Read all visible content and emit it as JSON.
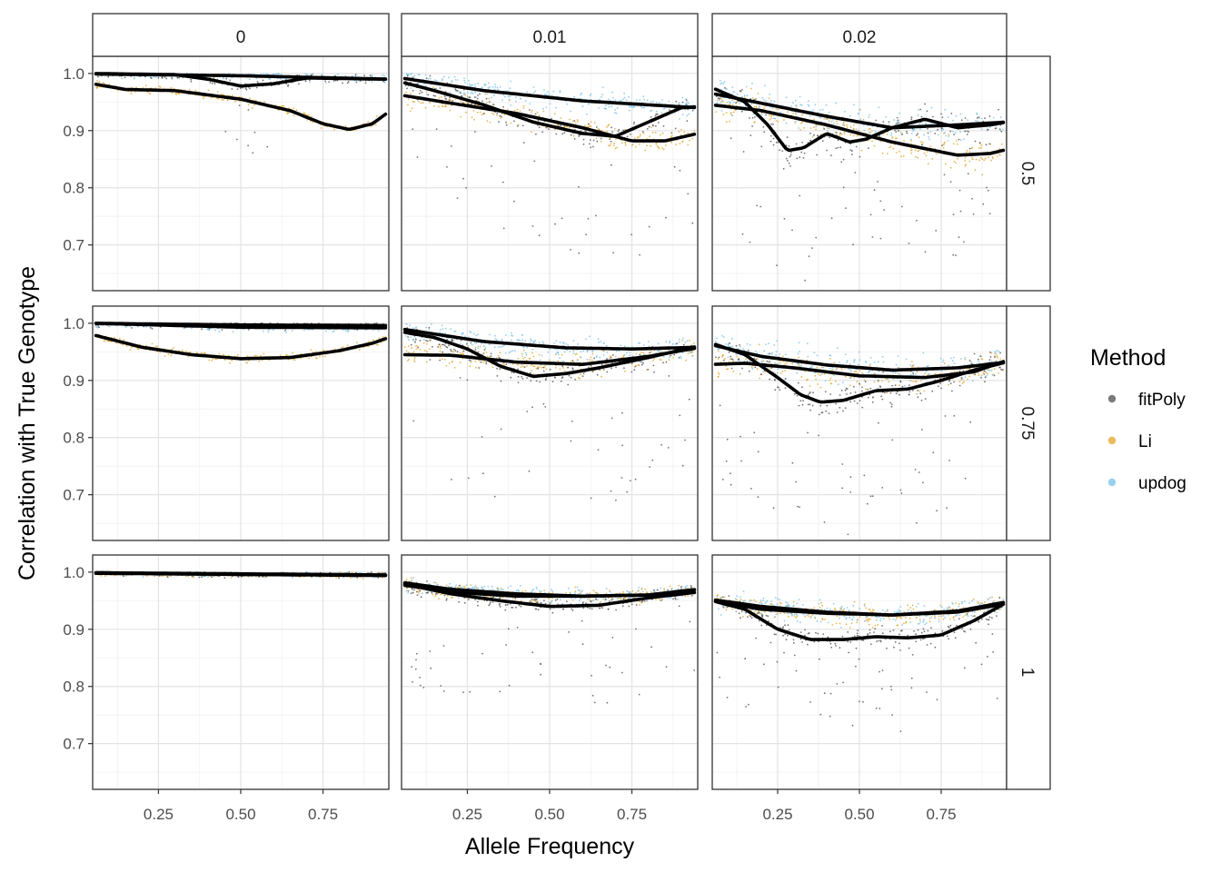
{
  "chart_data": {
    "type": "scatter",
    "xlabel": "Allele Frequency",
    "ylabel": "Correlation with True Genotype",
    "xlim": [
      0.05,
      0.95
    ],
    "ylim": [
      0.62,
      1.03
    ],
    "x_ticks": [
      0.25,
      0.5,
      0.75
    ],
    "x_tick_labels": [
      "0.25",
      "0.50",
      "0.75"
    ],
    "y_ticks": [
      0.7,
      0.8,
      0.9,
      1.0
    ],
    "y_tick_labels": [
      "0.7",
      "0.8",
      "0.9",
      "1.0"
    ],
    "grid": true,
    "column_facets": [
      "0",
      "0.01",
      "0.02"
    ],
    "row_facets": [
      "0.5",
      "0.75",
      "1"
    ],
    "legend": {
      "title": "Method",
      "position": "right",
      "entries": [
        {
          "label": "fitPoly",
          "color": "#5a5a5a"
        },
        {
          "label": "Li",
          "color": "#E6A934"
        },
        {
          "label": "updog",
          "color": "#7EC4EA"
        }
      ]
    },
    "smooth_color": "#000000",
    "panels": [
      {
        "row": "0.5",
        "col": "0",
        "smooths": {
          "fitPoly": [
            [
              0.05,
              1.0
            ],
            [
              0.3,
              0.998
            ],
            [
              0.4,
              0.99
            ],
            [
              0.5,
              0.978
            ],
            [
              0.6,
              0.982
            ],
            [
              0.7,
              0.992
            ],
            [
              0.95,
              0.99
            ]
          ],
          "Li": [
            [
              0.05,
              0.982
            ],
            [
              0.15,
              0.972
            ],
            [
              0.3,
              0.97
            ],
            [
              0.5,
              0.955
            ],
            [
              0.65,
              0.935
            ],
            [
              0.75,
              0.912
            ],
            [
              0.83,
              0.902
            ],
            [
              0.9,
              0.912
            ],
            [
              0.95,
              0.933
            ]
          ],
          "updog": [
            [
              0.05,
              0.999
            ],
            [
              0.5,
              0.996
            ],
            [
              0.95,
              0.99
            ]
          ]
        }
      },
      {
        "row": "0.5",
        "col": "0.01",
        "smooths": {
          "fitPoly": [
            [
              0.05,
              0.985
            ],
            [
              0.15,
              0.97
            ],
            [
              0.3,
              0.945
            ],
            [
              0.45,
              0.915
            ],
            [
              0.6,
              0.895
            ],
            [
              0.7,
              0.89
            ],
            [
              0.8,
              0.915
            ],
            [
              0.9,
              0.94
            ],
            [
              0.95,
              0.942
            ]
          ],
          "Li": [
            [
              0.05,
              0.962
            ],
            [
              0.2,
              0.948
            ],
            [
              0.4,
              0.93
            ],
            [
              0.6,
              0.905
            ],
            [
              0.75,
              0.882
            ],
            [
              0.85,
              0.882
            ],
            [
              0.95,
              0.895
            ]
          ],
          "updog": [
            [
              0.05,
              0.992
            ],
            [
              0.3,
              0.97
            ],
            [
              0.6,
              0.952
            ],
            [
              0.95,
              0.94
            ]
          ]
        }
      },
      {
        "row": "0.5",
        "col": "0.02",
        "smooths": {
          "fitPoly": [
            [
              0.05,
              0.975
            ],
            [
              0.15,
              0.95
            ],
            [
              0.22,
              0.91
            ],
            [
              0.28,
              0.865
            ],
            [
              0.33,
              0.87
            ],
            [
              0.4,
              0.895
            ],
            [
              0.47,
              0.88
            ],
            [
              0.52,
              0.885
            ],
            [
              0.6,
              0.905
            ],
            [
              0.7,
              0.92
            ],
            [
              0.8,
              0.905
            ],
            [
              0.9,
              0.91
            ],
            [
              0.95,
              0.915
            ]
          ],
          "Li": [
            [
              0.05,
              0.945
            ],
            [
              0.2,
              0.935
            ],
            [
              0.4,
              0.91
            ],
            [
              0.6,
              0.88
            ],
            [
              0.8,
              0.857
            ],
            [
              0.9,
              0.86
            ],
            [
              0.95,
              0.867
            ]
          ],
          "updog": [
            [
              0.05,
              0.965
            ],
            [
              0.2,
              0.948
            ],
            [
              0.4,
              0.925
            ],
            [
              0.6,
              0.905
            ],
            [
              0.8,
              0.91
            ],
            [
              0.95,
              0.915
            ]
          ]
        }
      },
      {
        "row": "0.75",
        "col": "0",
        "smooths": {
          "fitPoly": [
            [
              0.05,
              1.0
            ],
            [
              0.5,
              0.997
            ],
            [
              0.95,
              0.996
            ]
          ],
          "Li": [
            [
              0.05,
              0.98
            ],
            [
              0.2,
              0.958
            ],
            [
              0.35,
              0.945
            ],
            [
              0.5,
              0.938
            ],
            [
              0.65,
              0.94
            ],
            [
              0.8,
              0.952
            ],
            [
              0.9,
              0.965
            ],
            [
              0.95,
              0.975
            ]
          ],
          "updog": [
            [
              0.05,
              1.0
            ],
            [
              0.5,
              0.993
            ],
            [
              0.95,
              0.992
            ]
          ]
        }
      },
      {
        "row": "0.75",
        "col": "0.01",
        "smooths": {
          "fitPoly": [
            [
              0.05,
              0.985
            ],
            [
              0.15,
              0.975
            ],
            [
              0.25,
              0.955
            ],
            [
              0.35,
              0.925
            ],
            [
              0.45,
              0.907
            ],
            [
              0.55,
              0.912
            ],
            [
              0.65,
              0.922
            ],
            [
              0.8,
              0.94
            ],
            [
              0.95,
              0.96
            ]
          ],
          "Li": [
            [
              0.05,
              0.945
            ],
            [
              0.2,
              0.944
            ],
            [
              0.4,
              0.932
            ],
            [
              0.6,
              0.928
            ],
            [
              0.8,
              0.942
            ],
            [
              0.95,
              0.957
            ]
          ],
          "updog": [
            [
              0.05,
              0.99
            ],
            [
              0.3,
              0.968
            ],
            [
              0.55,
              0.957
            ],
            [
              0.75,
              0.955
            ],
            [
              0.95,
              0.958
            ]
          ]
        }
      },
      {
        "row": "0.75",
        "col": "0.02",
        "smooths": {
          "fitPoly": [
            [
              0.05,
              0.965
            ],
            [
              0.15,
              0.945
            ],
            [
              0.25,
              0.905
            ],
            [
              0.32,
              0.875
            ],
            [
              0.38,
              0.862
            ],
            [
              0.45,
              0.865
            ],
            [
              0.55,
              0.882
            ],
            [
              0.65,
              0.885
            ],
            [
              0.75,
              0.9
            ],
            [
              0.85,
              0.918
            ],
            [
              0.95,
              0.932
            ]
          ],
          "Li": [
            [
              0.05,
              0.928
            ],
            [
              0.15,
              0.93
            ],
            [
              0.3,
              0.922
            ],
            [
              0.5,
              0.908
            ],
            [
              0.7,
              0.905
            ],
            [
              0.85,
              0.915
            ],
            [
              0.95,
              0.935
            ]
          ],
          "updog": [
            [
              0.05,
              0.962
            ],
            [
              0.2,
              0.942
            ],
            [
              0.4,
              0.927
            ],
            [
              0.6,
              0.918
            ],
            [
              0.8,
              0.922
            ],
            [
              0.95,
              0.932
            ]
          ]
        }
      },
      {
        "row": "1",
        "col": "0",
        "smooths": {
          "fitPoly": [
            [
              0.05,
              0.999
            ],
            [
              0.5,
              0.996
            ],
            [
              0.95,
              0.995
            ]
          ],
          "Li": [
            [
              0.05,
              0.998
            ],
            [
              0.5,
              0.996
            ],
            [
              0.95,
              0.994
            ]
          ],
          "updog": [
            [
              0.05,
              0.999
            ],
            [
              0.5,
              0.997
            ],
            [
              0.95,
              0.995
            ]
          ]
        }
      },
      {
        "row": "1",
        "col": "0.01",
        "smooths": {
          "fitPoly": [
            [
              0.05,
              0.98
            ],
            [
              0.2,
              0.962
            ],
            [
              0.35,
              0.95
            ],
            [
              0.5,
              0.94
            ],
            [
              0.65,
              0.942
            ],
            [
              0.8,
              0.955
            ],
            [
              0.95,
              0.965
            ]
          ],
          "Li": [
            [
              0.05,
              0.978
            ],
            [
              0.2,
              0.965
            ],
            [
              0.4,
              0.958
            ],
            [
              0.6,
              0.958
            ],
            [
              0.8,
              0.96
            ],
            [
              0.95,
              0.97
            ]
          ],
          "updog": [
            [
              0.05,
              0.982
            ],
            [
              0.2,
              0.97
            ],
            [
              0.4,
              0.962
            ],
            [
              0.6,
              0.958
            ],
            [
              0.8,
              0.96
            ],
            [
              0.95,
              0.97
            ]
          ]
        }
      },
      {
        "row": "1",
        "col": "0.02",
        "smooths": {
          "fitPoly": [
            [
              0.05,
              0.95
            ],
            [
              0.15,
              0.935
            ],
            [
              0.25,
              0.9
            ],
            [
              0.35,
              0.882
            ],
            [
              0.45,
              0.882
            ],
            [
              0.55,
              0.887
            ],
            [
              0.65,
              0.885
            ],
            [
              0.75,
              0.89
            ],
            [
              0.85,
              0.915
            ],
            [
              0.95,
              0.947
            ]
          ],
          "Li": [
            [
              0.05,
              0.95
            ],
            [
              0.2,
              0.935
            ],
            [
              0.4,
              0.928
            ],
            [
              0.6,
              0.925
            ],
            [
              0.8,
              0.93
            ],
            [
              0.95,
              0.945
            ]
          ],
          "updog": [
            [
              0.05,
              0.952
            ],
            [
              0.2,
              0.94
            ],
            [
              0.4,
              0.93
            ],
            [
              0.6,
              0.925
            ],
            [
              0.8,
              0.932
            ],
            [
              0.95,
              0.948
            ]
          ]
        }
      }
    ]
  }
}
